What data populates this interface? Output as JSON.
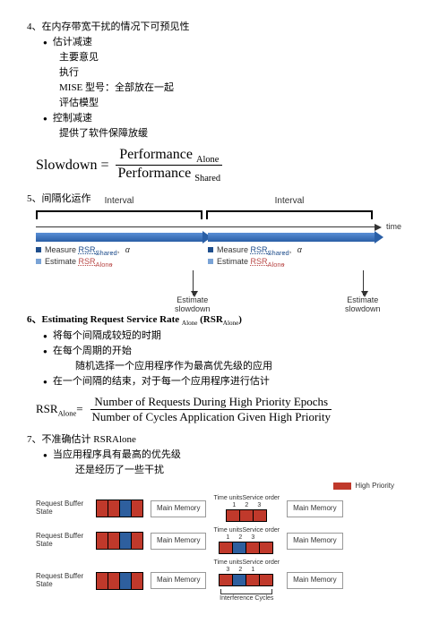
{
  "sec4": {
    "title": "4、在内存带宽干扰的情况下可预见性",
    "items": [
      {
        "label": "估计减速",
        "sub": [
          "主要意见",
          "执行",
          "MISE 型号：全部放在一起",
          "评估模型"
        ]
      },
      {
        "label": "控制减速",
        "sub": [
          "提供了软件保障放缓"
        ]
      }
    ],
    "formula": {
      "lhs": "Slowdown =",
      "top": "Performance",
      "top_sub": "Alone",
      "bot": "Performance",
      "bot_sub": "Shared"
    }
  },
  "sec5": {
    "title": "5、间隔化运作",
    "interval": "Interval",
    "time": "time",
    "measure": "Measure",
    "estimate": "Estimate",
    "rsr_shared": "RSR",
    "rsr_shared_sub": "Shared",
    "rsr_alone": "RSR",
    "rsr_alone_sub": "Alone",
    "alpha": "α",
    "slow": "Estimate slowdown"
  },
  "sec6": {
    "title": "6、Estimating Request Service Rate ",
    "title_sub": "Alone",
    "title_tail": " (RSR",
    "title_tail_sub": "Alone",
    "title_end": ")",
    "items": [
      "将每个间隔成较短的时期",
      "在每个周期的开始",
      "在一个间隔的结束，对于每一个应用程序进行估计"
    ],
    "sub_item": "随机选择一个应用程序作为最高优先级的应用",
    "formula": {
      "lhs": "RSR",
      "lhs_sub": "Alone",
      "eq": "=",
      "top": "Number of Requests During High Priority Epochs",
      "bot": "Number of Cycles Application Given High Priority"
    }
  },
  "sec7": {
    "title": "7、不准确估计 RSRAlone",
    "item": "当应用程序具有最高的优先级",
    "sub_item": "还是经历了一些干扰",
    "legend": "High Priority",
    "row_label": "Request Buffer State",
    "mem": "Main Memory",
    "time_units": "Time units",
    "svc_order": "Service order",
    "interf": "Interference Cycles",
    "rows": [
      {
        "buf": [
          "red",
          "red",
          "blue",
          "red"
        ],
        "nums": [
          "1",
          "2",
          "3"
        ],
        "svc": [
          "red",
          "red",
          "red"
        ]
      },
      {
        "buf": [
          "red",
          "red",
          "blue",
          "red"
        ],
        "nums": [
          "1",
          "2",
          "3"
        ],
        "svc": [
          "red",
          "blue",
          "red",
          "red"
        ]
      },
      {
        "buf": [
          "red",
          "red",
          "blue",
          "red"
        ],
        "nums": [
          "3",
          "2",
          "1"
        ],
        "svc": [
          "red",
          "blue",
          "red",
          "red"
        ],
        "interf": true
      }
    ]
  }
}
